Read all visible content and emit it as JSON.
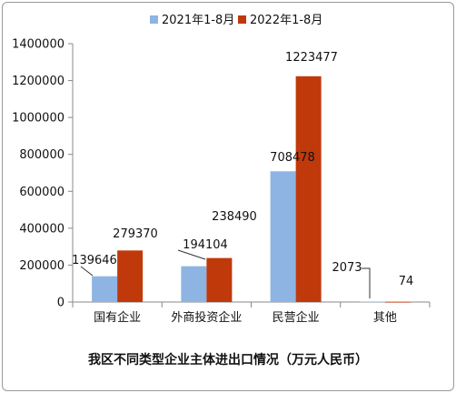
{
  "chart_data": {
    "type": "bar",
    "title": "我区不同类型企业主体进出口情况（万元人民币）",
    "categories": [
      "国有企业",
      "外商投资企业",
      "民营企业",
      "其他"
    ],
    "series": [
      {
        "name": "2021年1-8月",
        "color": "#8eb4e3",
        "values": [
          139646,
          194104,
          708478,
          2073
        ]
      },
      {
        "name": "2022年1-8月",
        "color": "#c0390b",
        "values": [
          279370,
          238490,
          1223477,
          74
        ]
      }
    ],
    "data_labels": [
      [
        "139646",
        "194104",
        "708478",
        "2073"
      ],
      [
        "279370",
        "238490",
        "1223477",
        "74"
      ]
    ],
    "y_ticks": [
      "0",
      "200000",
      "400000",
      "600000",
      "800000",
      "1000000",
      "1200000",
      "1400000"
    ],
    "ylim": [
      0,
      1400000
    ],
    "grid": false,
    "legend_position": "top"
  }
}
